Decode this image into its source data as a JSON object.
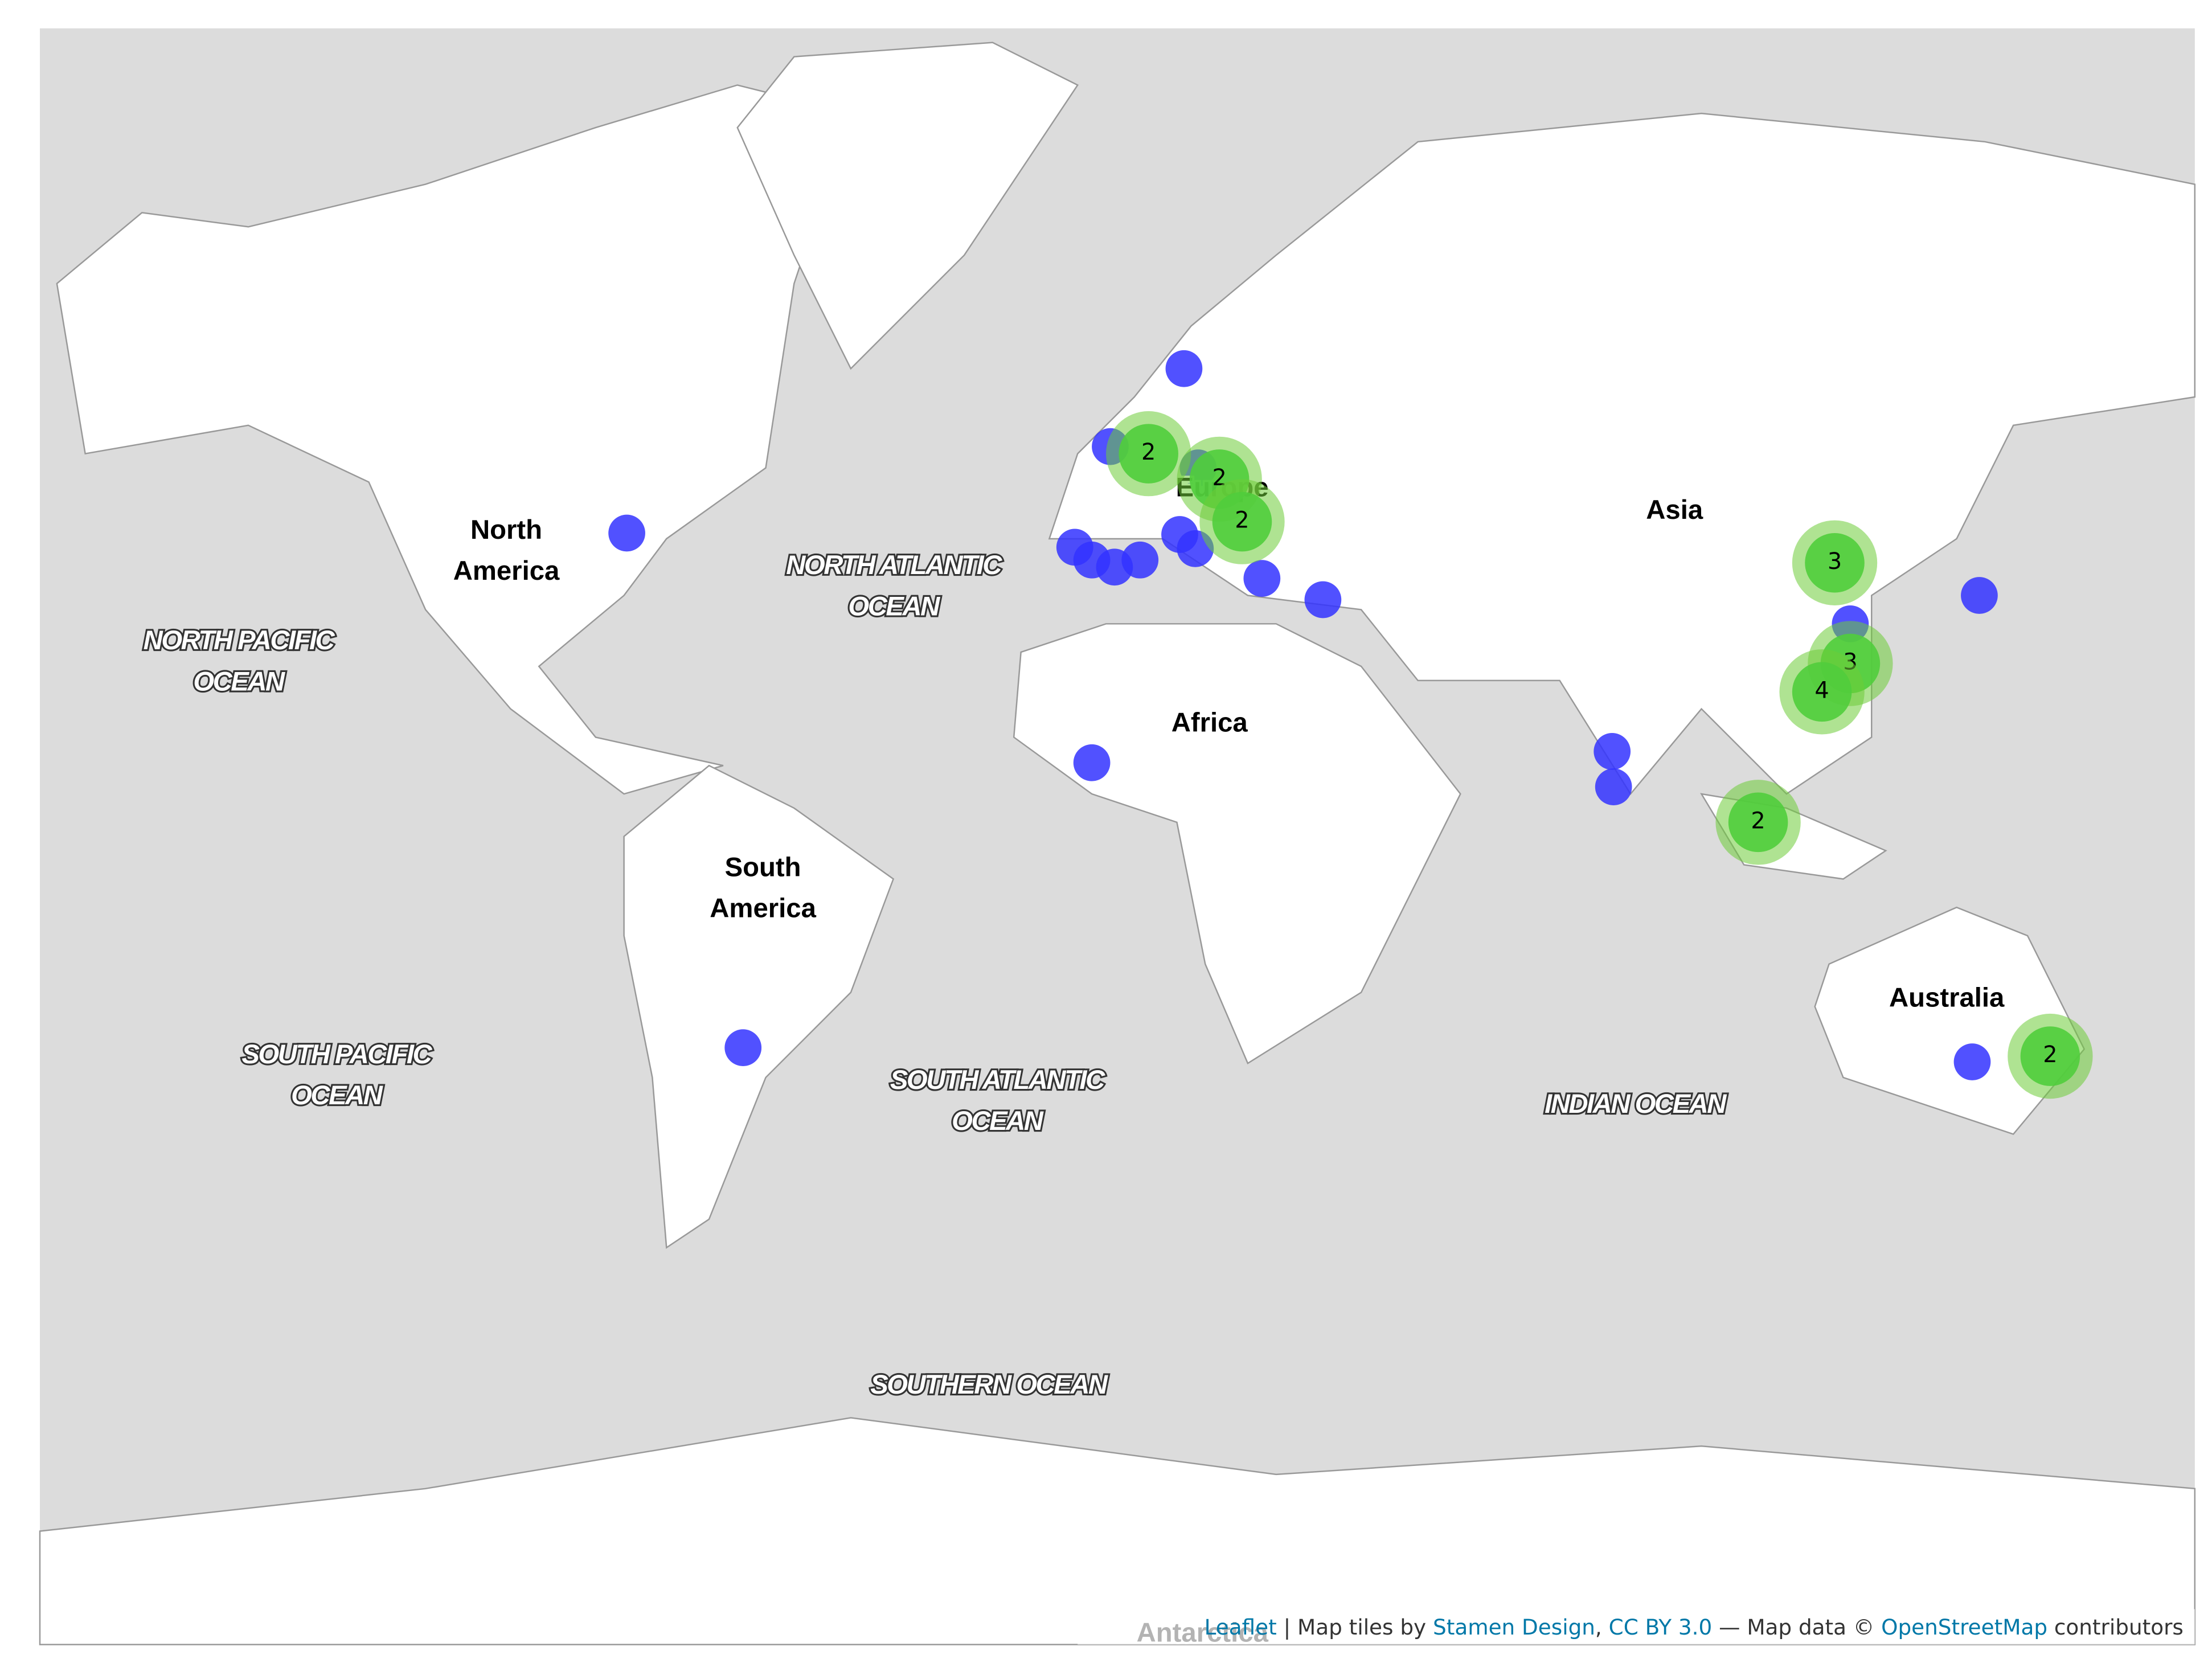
{
  "labels": [
    {
      "kind": "continent",
      "lines": [
        "North",
        "America"
      ]
    },
    {
      "kind": "continent",
      "lines": [
        "South",
        "America"
      ]
    },
    {
      "kind": "continent",
      "lines": [
        "Europe"
      ]
    },
    {
      "kind": "continent",
      "lines": [
        "Asia"
      ]
    },
    {
      "kind": "continent",
      "lines": [
        "Africa"
      ]
    },
    {
      "kind": "continent",
      "lines": [
        "Australia"
      ]
    },
    {
      "kind": "continent",
      "lines": [
        "Antarctica"
      ]
    },
    {
      "kind": "ocean",
      "lines": [
        "NORTH PACIFIC",
        "OCEAN"
      ]
    },
    {
      "kind": "ocean",
      "lines": [
        "NORTH ATLANTIC",
        "OCEAN"
      ]
    },
    {
      "kind": "ocean",
      "lines": [
        "SOUTH PACIFIC",
        "OCEAN"
      ]
    },
    {
      "kind": "ocean",
      "lines": [
        "SOUTH ATLANTIC",
        "OCEAN"
      ]
    },
    {
      "kind": "ocean",
      "lines": [
        "INDIAN OCEAN"
      ]
    },
    {
      "kind": "ocean",
      "lines": [
        "SOUTHERN OCEAN"
      ]
    }
  ],
  "clusters": [
    2,
    2,
    2,
    3,
    3,
    4,
    2,
    2
  ],
  "attribution": [
    "Leaflet",
    " | Map tiles by ",
    "Stamen Design",
    ", ",
    "CC BY 3.0",
    " — Map data © ",
    "OpenStreetMap",
    " contributors"
  ]
}
